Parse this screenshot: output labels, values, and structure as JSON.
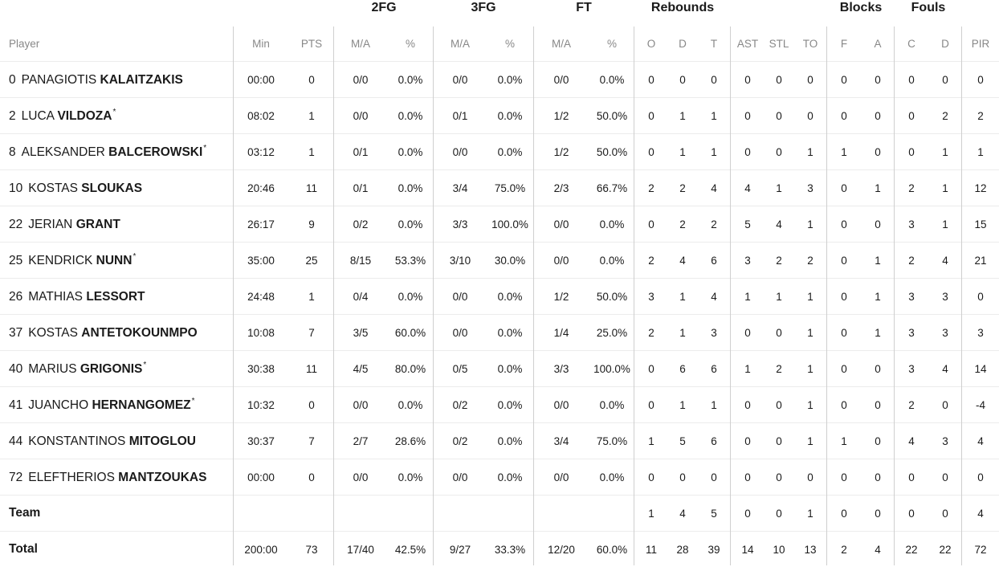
{
  "group_headers": {
    "fg2": "2FG",
    "fg3": "3FG",
    "ft": "FT",
    "reb": "Rebounds",
    "blk": "Blocks",
    "fouls": "Fouls"
  },
  "columns": [
    "Player",
    "Min",
    "PTS",
    "M/A",
    "%",
    "M/A",
    "%",
    "M/A",
    "%",
    "O",
    "D",
    "T",
    "AST",
    "STL",
    "TO",
    "F",
    "A",
    "C",
    "D",
    "PIR"
  ],
  "players": [
    {
      "num": "0",
      "first": "PANAGIOTIS",
      "last": "KALAITZAKIS",
      "star": "",
      "stats": [
        "00:00",
        "0",
        "0/0",
        "0.0%",
        "0/0",
        "0.0%",
        "0/0",
        "0.0%",
        "0",
        "0",
        "0",
        "0",
        "0",
        "0",
        "0",
        "0",
        "0",
        "0",
        "0"
      ]
    },
    {
      "num": "2",
      "first": "LUCA",
      "last": "VILDOZA",
      "star": "*",
      "stats": [
        "08:02",
        "1",
        "0/0",
        "0.0%",
        "0/1",
        "0.0%",
        "1/2",
        "50.0%",
        "0",
        "1",
        "1",
        "0",
        "0",
        "0",
        "0",
        "0",
        "0",
        "2",
        "2"
      ]
    },
    {
      "num": "8",
      "first": "ALEKSANDER",
      "last": "BALCEROWSKI",
      "star": "*",
      "stats": [
        "03:12",
        "1",
        "0/1",
        "0.0%",
        "0/0",
        "0.0%",
        "1/2",
        "50.0%",
        "0",
        "1",
        "1",
        "0",
        "0",
        "1",
        "1",
        "0",
        "0",
        "1",
        "1"
      ]
    },
    {
      "num": "10",
      "first": "KOSTAS",
      "last": "SLOUKAS",
      "star": "",
      "stats": [
        "20:46",
        "11",
        "0/1",
        "0.0%",
        "3/4",
        "75.0%",
        "2/3",
        "66.7%",
        "2",
        "2",
        "4",
        "4",
        "1",
        "3",
        "0",
        "1",
        "2",
        "1",
        "12"
      ]
    },
    {
      "num": "22",
      "first": "JERIAN",
      "last": "GRANT",
      "star": "",
      "stats": [
        "26:17",
        "9",
        "0/2",
        "0.0%",
        "3/3",
        "100.0%",
        "0/0",
        "0.0%",
        "0",
        "2",
        "2",
        "5",
        "4",
        "1",
        "0",
        "0",
        "3",
        "1",
        "15"
      ]
    },
    {
      "num": "25",
      "first": "KENDRICK",
      "last": "NUNN",
      "star": "*",
      "stats": [
        "35:00",
        "25",
        "8/15",
        "53.3%",
        "3/10",
        "30.0%",
        "0/0",
        "0.0%",
        "2",
        "4",
        "6",
        "3",
        "2",
        "2",
        "0",
        "1",
        "2",
        "4",
        "21"
      ]
    },
    {
      "num": "26",
      "first": "MATHIAS",
      "last": "LESSORT",
      "star": "",
      "stats": [
        "24:48",
        "1",
        "0/4",
        "0.0%",
        "0/0",
        "0.0%",
        "1/2",
        "50.0%",
        "3",
        "1",
        "4",
        "1",
        "1",
        "1",
        "0",
        "1",
        "3",
        "3",
        "0"
      ]
    },
    {
      "num": "37",
      "first": "KOSTAS",
      "last": "ANTETOKOUNMPO",
      "star": "",
      "stats": [
        "10:08",
        "7",
        "3/5",
        "60.0%",
        "0/0",
        "0.0%",
        "1/4",
        "25.0%",
        "2",
        "1",
        "3",
        "0",
        "0",
        "1",
        "0",
        "1",
        "3",
        "3",
        "3"
      ]
    },
    {
      "num": "40",
      "first": "MARIUS",
      "last": "GRIGONIS",
      "star": "*",
      "stats": [
        "30:38",
        "11",
        "4/5",
        "80.0%",
        "0/5",
        "0.0%",
        "3/3",
        "100.0%",
        "0",
        "6",
        "6",
        "1",
        "2",
        "1",
        "0",
        "0",
        "3",
        "4",
        "14"
      ]
    },
    {
      "num": "41",
      "first": "JUANCHO",
      "last": "HERNANGOMEZ",
      "star": "*",
      "stats": [
        "10:32",
        "0",
        "0/0",
        "0.0%",
        "0/2",
        "0.0%",
        "0/0",
        "0.0%",
        "0",
        "1",
        "1",
        "0",
        "0",
        "1",
        "0",
        "0",
        "2",
        "0",
        "-4"
      ]
    },
    {
      "num": "44",
      "first": "KONSTANTINOS",
      "last": "MITOGLOU",
      "star": "",
      "stats": [
        "30:37",
        "7",
        "2/7",
        "28.6%",
        "0/2",
        "0.0%",
        "3/4",
        "75.0%",
        "1",
        "5",
        "6",
        "0",
        "0",
        "1",
        "1",
        "0",
        "4",
        "3",
        "4"
      ]
    },
    {
      "num": "72",
      "first": "ELEFTHERIOS",
      "last": "MANTZOUKAS",
      "star": "",
      "stats": [
        "00:00",
        "0",
        "0/0",
        "0.0%",
        "0/0",
        "0.0%",
        "0/0",
        "0.0%",
        "0",
        "0",
        "0",
        "0",
        "0",
        "0",
        "0",
        "0",
        "0",
        "0",
        "0"
      ]
    }
  ],
  "totals": [
    {
      "label": "Team",
      "stats": [
        "",
        "",
        "",
        "",
        "",
        "",
        "",
        "",
        "1",
        "4",
        "5",
        "0",
        "0",
        "1",
        "0",
        "0",
        "0",
        "0",
        "4"
      ]
    },
    {
      "label": "Total",
      "stats": [
        "200:00",
        "73",
        "17/40",
        "42.5%",
        "9/27",
        "33.3%",
        "12/20",
        "60.0%",
        "11",
        "28",
        "39",
        "14",
        "10",
        "13",
        "2",
        "4",
        "22",
        "22",
        "72"
      ]
    }
  ]
}
